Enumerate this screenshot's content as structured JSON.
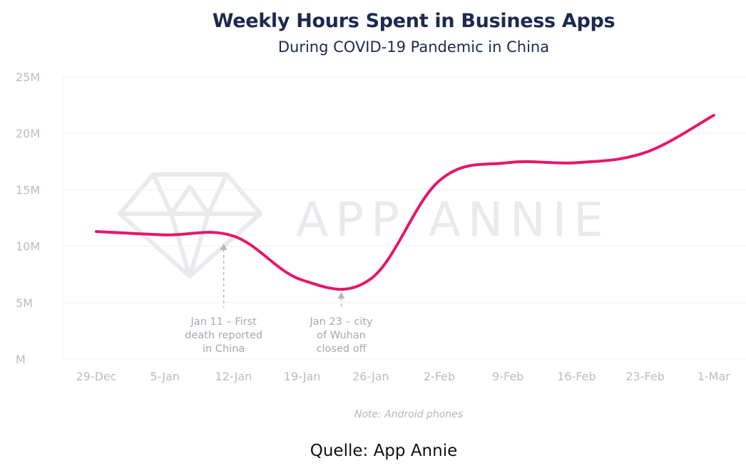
{
  "chart_data": {
    "type": "line",
    "title": "Weekly Hours Spent in Business Apps",
    "subtitle": "During COVID-19 Pandemic in China",
    "xlabel": "",
    "ylabel": "",
    "categories": [
      "29-Dec",
      "5-Jan",
      "12-Jan",
      "19-Jan",
      "26-Jan",
      "2-Feb",
      "9-Feb",
      "16-Feb",
      "23-Feb",
      "1-Mar"
    ],
    "series": [
      {
        "values": [
          11.3,
          11.0,
          10.9,
          7.0,
          7.1,
          15.8,
          17.4,
          17.4,
          18.3,
          21.6
        ],
        "color": "#e5176a"
      }
    ],
    "ylim": [
      0,
      25
    ],
    "yticks": [
      {
        "value": 0,
        "label": "M"
      },
      {
        "value": 5,
        "label": "5M"
      },
      {
        "value": 10,
        "label": "10M"
      },
      {
        "value": 15,
        "label": "15M"
      },
      {
        "value": 20,
        "label": "20M"
      },
      {
        "value": 25,
        "label": "25M"
      }
    ],
    "grid": true,
    "annotations": [
      {
        "at": 11,
        "lines": [
          "Jan 11 – First",
          "death reported",
          "in China"
        ]
      },
      {
        "at": 23,
        "lines": [
          "Jan 23 – city",
          "of Wuhan",
          "closed off"
        ]
      }
    ],
    "note": "Note: Android phones"
  },
  "watermark": "APP ANNIE",
  "source": "Quelle: App Annie"
}
